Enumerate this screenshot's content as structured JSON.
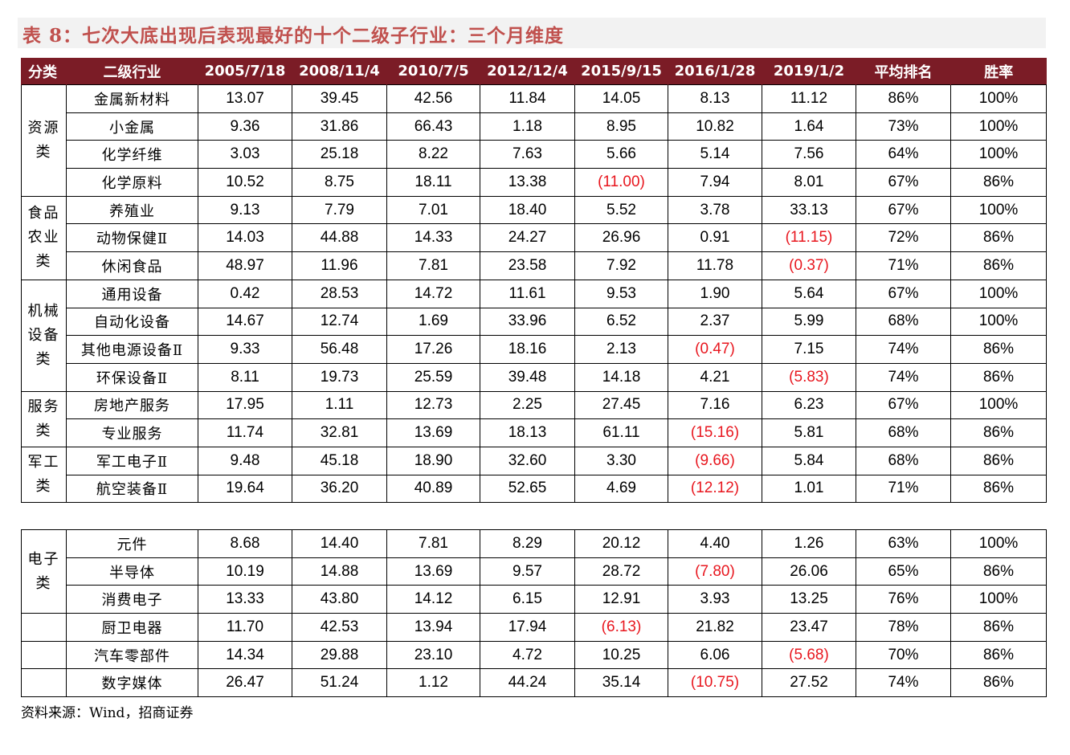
{
  "title": "表 8：七次大底出现后表现最好的十个二级子行业：三个月维度",
  "colors": {
    "header_bg": "#7b1c26",
    "title": "#c0504d",
    "negative": "#e8171f"
  },
  "headers": [
    "分类",
    "二级行业",
    "2005/7/18",
    "2008/11/4",
    "2010/7/5",
    "2012/12/4",
    "2015/9/15",
    "2016/1/28",
    "2019/1/2",
    "平均排名",
    "胜率"
  ],
  "groups": [
    {
      "category": "资源类",
      "rows": [
        {
          "name": "金属新材料",
          "values": [
            "13.07",
            "39.45",
            "42.56",
            "11.84",
            "14.05",
            "8.13",
            "11.12"
          ],
          "avg_rank": "86%",
          "win_rate": "100%"
        },
        {
          "name": "小金属",
          "values": [
            "9.36",
            "31.86",
            "66.43",
            "1.18",
            "8.95",
            "10.82",
            "1.64"
          ],
          "avg_rank": "73%",
          "win_rate": "100%"
        },
        {
          "name": "化学纤维",
          "values": [
            "3.03",
            "25.18",
            "8.22",
            "7.63",
            "5.66",
            "5.14",
            "7.56"
          ],
          "avg_rank": "64%",
          "win_rate": "100%"
        },
        {
          "name": "化学原料",
          "values": [
            "10.52",
            "8.75",
            "18.11",
            "13.38",
            "(11.00)",
            "7.94",
            "8.01"
          ],
          "avg_rank": "67%",
          "win_rate": "86%"
        }
      ]
    },
    {
      "category": "食品农业类",
      "rows": [
        {
          "name": "养殖业",
          "values": [
            "9.13",
            "7.79",
            "7.01",
            "18.40",
            "5.52",
            "3.78",
            "33.13"
          ],
          "avg_rank": "67%",
          "win_rate": "100%"
        },
        {
          "name": "动物保健Ⅱ",
          "values": [
            "14.03",
            "44.88",
            "14.33",
            "24.27",
            "26.96",
            "0.91",
            "(11.15)"
          ],
          "avg_rank": "72%",
          "win_rate": "86%"
        },
        {
          "name": "休闲食品",
          "values": [
            "48.97",
            "11.96",
            "7.81",
            "23.58",
            "7.92",
            "11.78",
            "(0.37)"
          ],
          "avg_rank": "71%",
          "win_rate": "86%"
        }
      ]
    },
    {
      "category": "机械设备类",
      "rows": [
        {
          "name": "通用设备",
          "values": [
            "0.42",
            "28.53",
            "14.72",
            "11.61",
            "9.53",
            "1.90",
            "5.64"
          ],
          "avg_rank": "67%",
          "win_rate": "100%"
        },
        {
          "name": "自动化设备",
          "values": [
            "14.67",
            "12.74",
            "1.69",
            "33.96",
            "6.52",
            "2.37",
            "5.99"
          ],
          "avg_rank": "68%",
          "win_rate": "100%"
        },
        {
          "name": "其他电源设备Ⅱ",
          "values": [
            "9.33",
            "56.48",
            "17.26",
            "18.16",
            "2.13",
            "(0.47)",
            "7.15"
          ],
          "avg_rank": "74%",
          "win_rate": "86%"
        },
        {
          "name": "环保设备Ⅱ",
          "values": [
            "8.11",
            "19.73",
            "25.59",
            "39.48",
            "14.18",
            "4.21",
            "(5.83)"
          ],
          "avg_rank": "74%",
          "win_rate": "86%"
        }
      ]
    },
    {
      "category": "服务类",
      "rows": [
        {
          "name": "房地产服务",
          "values": [
            "17.95",
            "1.11",
            "12.73",
            "2.25",
            "27.45",
            "7.16",
            "6.23"
          ],
          "avg_rank": "67%",
          "win_rate": "100%"
        },
        {
          "name": "专业服务",
          "values": [
            "11.74",
            "32.81",
            "13.69",
            "18.13",
            "61.11",
            "(15.16)",
            "5.81"
          ],
          "avg_rank": "68%",
          "win_rate": "86%"
        }
      ]
    },
    {
      "category": "军工类",
      "rows": [
        {
          "name": "军工电子Ⅱ",
          "values": [
            "9.48",
            "45.18",
            "18.90",
            "32.60",
            "3.30",
            "(9.66)",
            "5.84"
          ],
          "avg_rank": "68%",
          "win_rate": "86%"
        },
        {
          "name": "航空装备Ⅱ",
          "values": [
            "19.64",
            "36.20",
            "40.89",
            "52.65",
            "4.69",
            "(12.12)",
            "1.01"
          ],
          "avg_rank": "71%",
          "win_rate": "86%"
        }
      ]
    }
  ],
  "groups2": [
    {
      "category": "电子类",
      "rows": [
        {
          "name": "元件",
          "values": [
            "8.68",
            "14.40",
            "7.81",
            "8.29",
            "20.12",
            "4.40",
            "1.26"
          ],
          "avg_rank": "63%",
          "win_rate": "100%"
        },
        {
          "name": "半导体",
          "values": [
            "10.19",
            "14.88",
            "13.69",
            "9.57",
            "28.72",
            "(7.80)",
            "26.06"
          ],
          "avg_rank": "65%",
          "win_rate": "86%"
        },
        {
          "name": "消费电子",
          "values": [
            "13.33",
            "43.80",
            "14.12",
            "6.15",
            "12.91",
            "3.93",
            "13.25"
          ],
          "avg_rank": "76%",
          "win_rate": "100%"
        }
      ]
    },
    {
      "category": "",
      "rows": [
        {
          "name": "厨卫电器",
          "values": [
            "11.70",
            "42.53",
            "13.94",
            "17.94",
            "(6.13)",
            "21.82",
            "23.47"
          ],
          "avg_rank": "78%",
          "win_rate": "86%"
        }
      ]
    },
    {
      "category": "",
      "rows": [
        {
          "name": "汽车零部件",
          "values": [
            "14.34",
            "29.88",
            "23.10",
            "4.72",
            "10.25",
            "6.06",
            "(5.68)"
          ],
          "avg_rank": "70%",
          "win_rate": "86%"
        }
      ]
    },
    {
      "category": "",
      "rows": [
        {
          "name": "数字媒体",
          "values": [
            "26.47",
            "51.24",
            "1.12",
            "44.24",
            "35.14",
            "(10.75)",
            "27.52"
          ],
          "avg_rank": "74%",
          "win_rate": "86%"
        }
      ]
    }
  ],
  "source": "资料来源：Wind，招商证券"
}
